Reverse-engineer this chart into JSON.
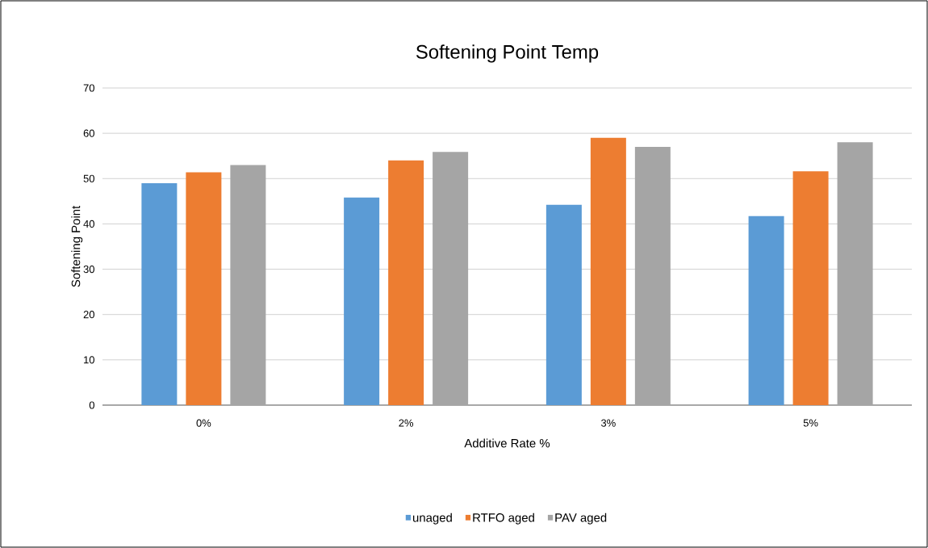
{
  "chart_data": {
    "type": "bar",
    "title": "Softening Point Temp",
    "xlabel": "Additive Rate %",
    "ylabel": "Softening Point",
    "categories": [
      "0%",
      "2%",
      "3%",
      "5%"
    ],
    "series": [
      {
        "name": "unaged",
        "color": "#5b9bd5",
        "values": [
          49,
          45.8,
          44.2,
          41.7
        ]
      },
      {
        "name": "RTFO aged",
        "color": "#ed7d31",
        "values": [
          51.4,
          54,
          59,
          51.6
        ]
      },
      {
        "name": "PAV aged",
        "color": "#a5a5a5",
        "values": [
          53,
          55.9,
          57,
          58
        ]
      }
    ],
    "ylim": [
      0,
      70
    ],
    "yticks": [
      0,
      10,
      20,
      30,
      40,
      50,
      60,
      70
    ],
    "grid": "y",
    "legend": "bottom"
  }
}
